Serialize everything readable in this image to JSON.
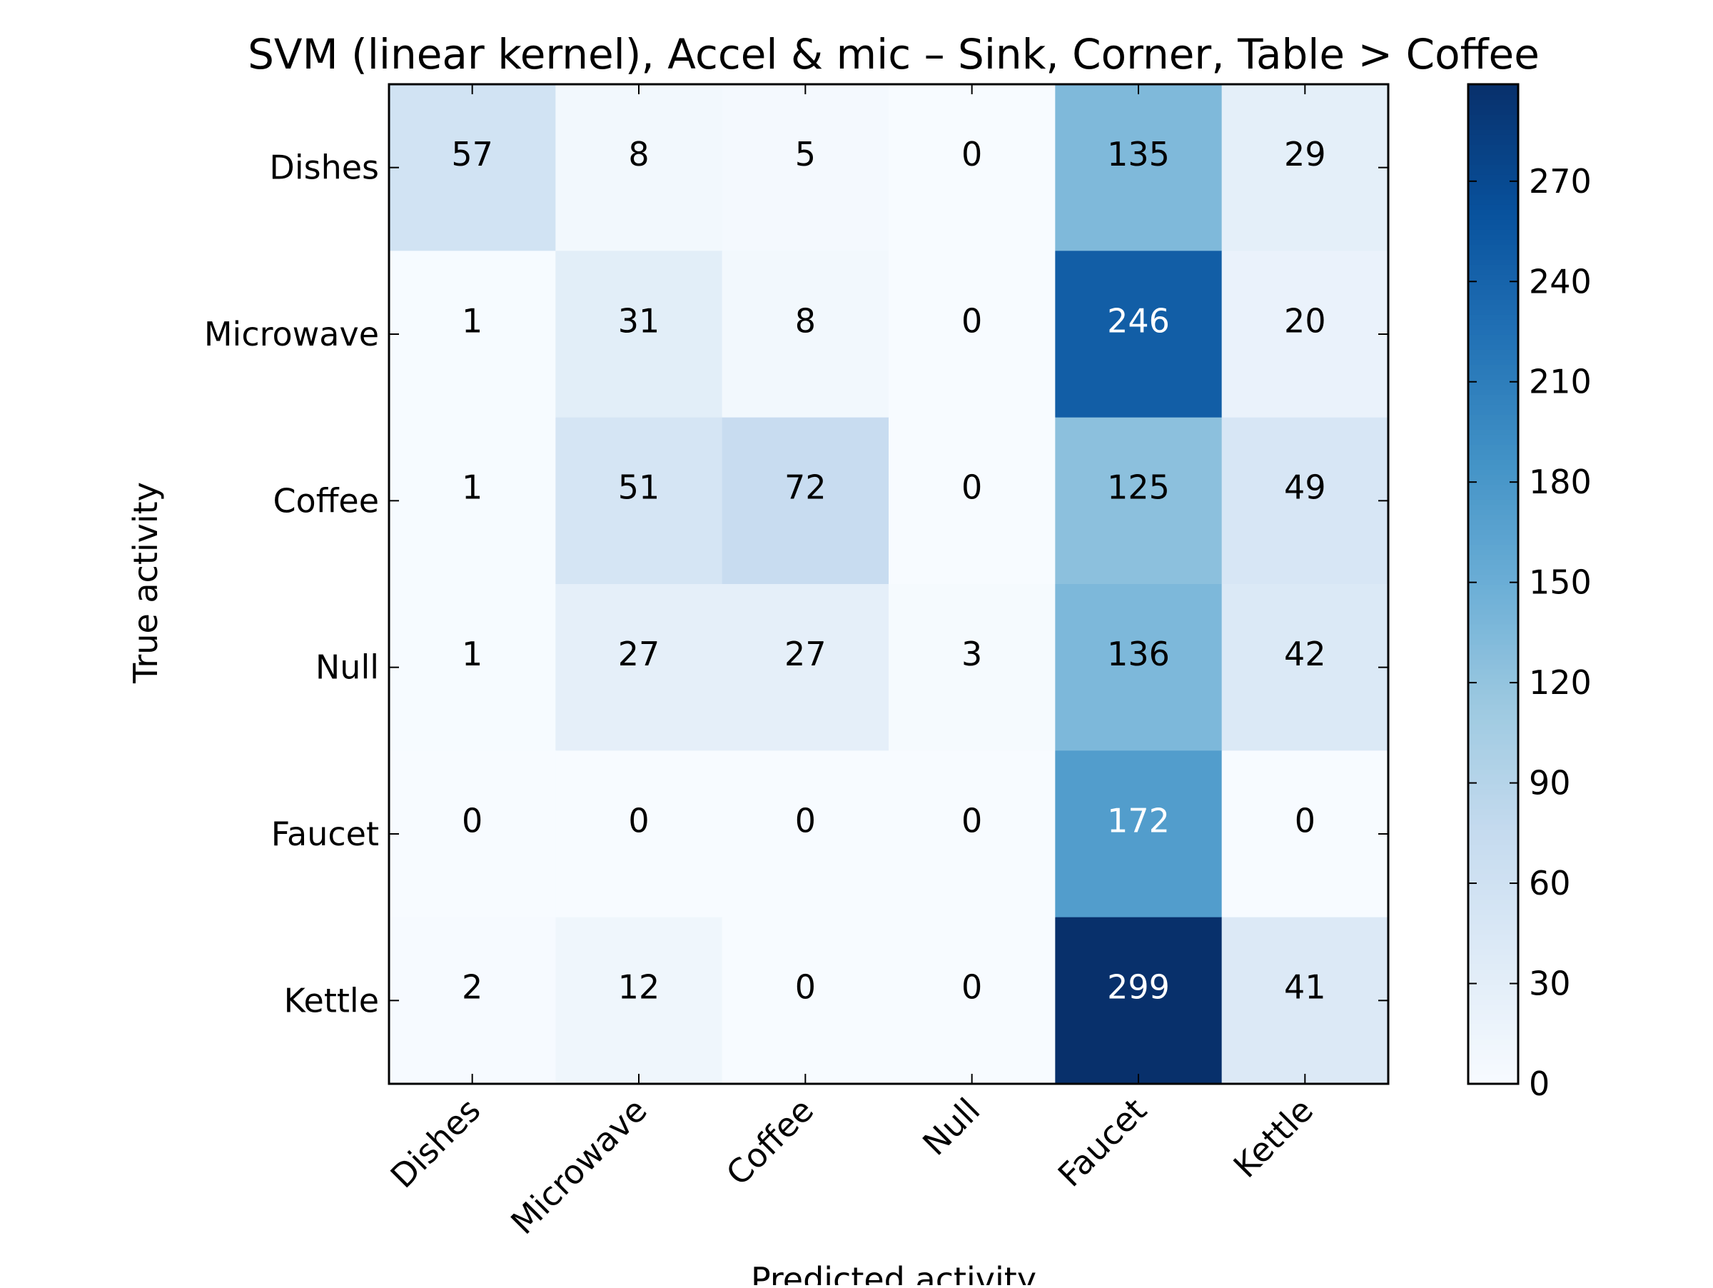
{
  "chart_data": {
    "type": "heatmap",
    "title": "SVM (linear kernel), Accel & mic – Sink, Corner, Table > Coffee",
    "xlabel": "Predicted activity",
    "ylabel": "True activity",
    "x_categories": [
      "Dishes",
      "Microwave",
      "Coffee",
      "Null",
      "Faucet",
      "Kettle"
    ],
    "y_categories": [
      "Dishes",
      "Microwave",
      "Coffee",
      "Null",
      "Faucet",
      "Kettle"
    ],
    "matrix": [
      [
        57,
        8,
        5,
        0,
        135,
        29
      ],
      [
        1,
        31,
        8,
        0,
        246,
        20
      ],
      [
        1,
        51,
        72,
        0,
        125,
        49
      ],
      [
        1,
        27,
        27,
        3,
        136,
        42
      ],
      [
        0,
        0,
        0,
        0,
        172,
        0
      ],
      [
        2,
        12,
        0,
        0,
        299,
        41
      ]
    ],
    "colormap": "Blues",
    "colorbar": {
      "vmin": 0,
      "vmax": 299,
      "ticks": [
        0,
        30,
        60,
        90,
        120,
        150,
        180,
        210,
        240,
        270
      ]
    },
    "grid": false
  }
}
